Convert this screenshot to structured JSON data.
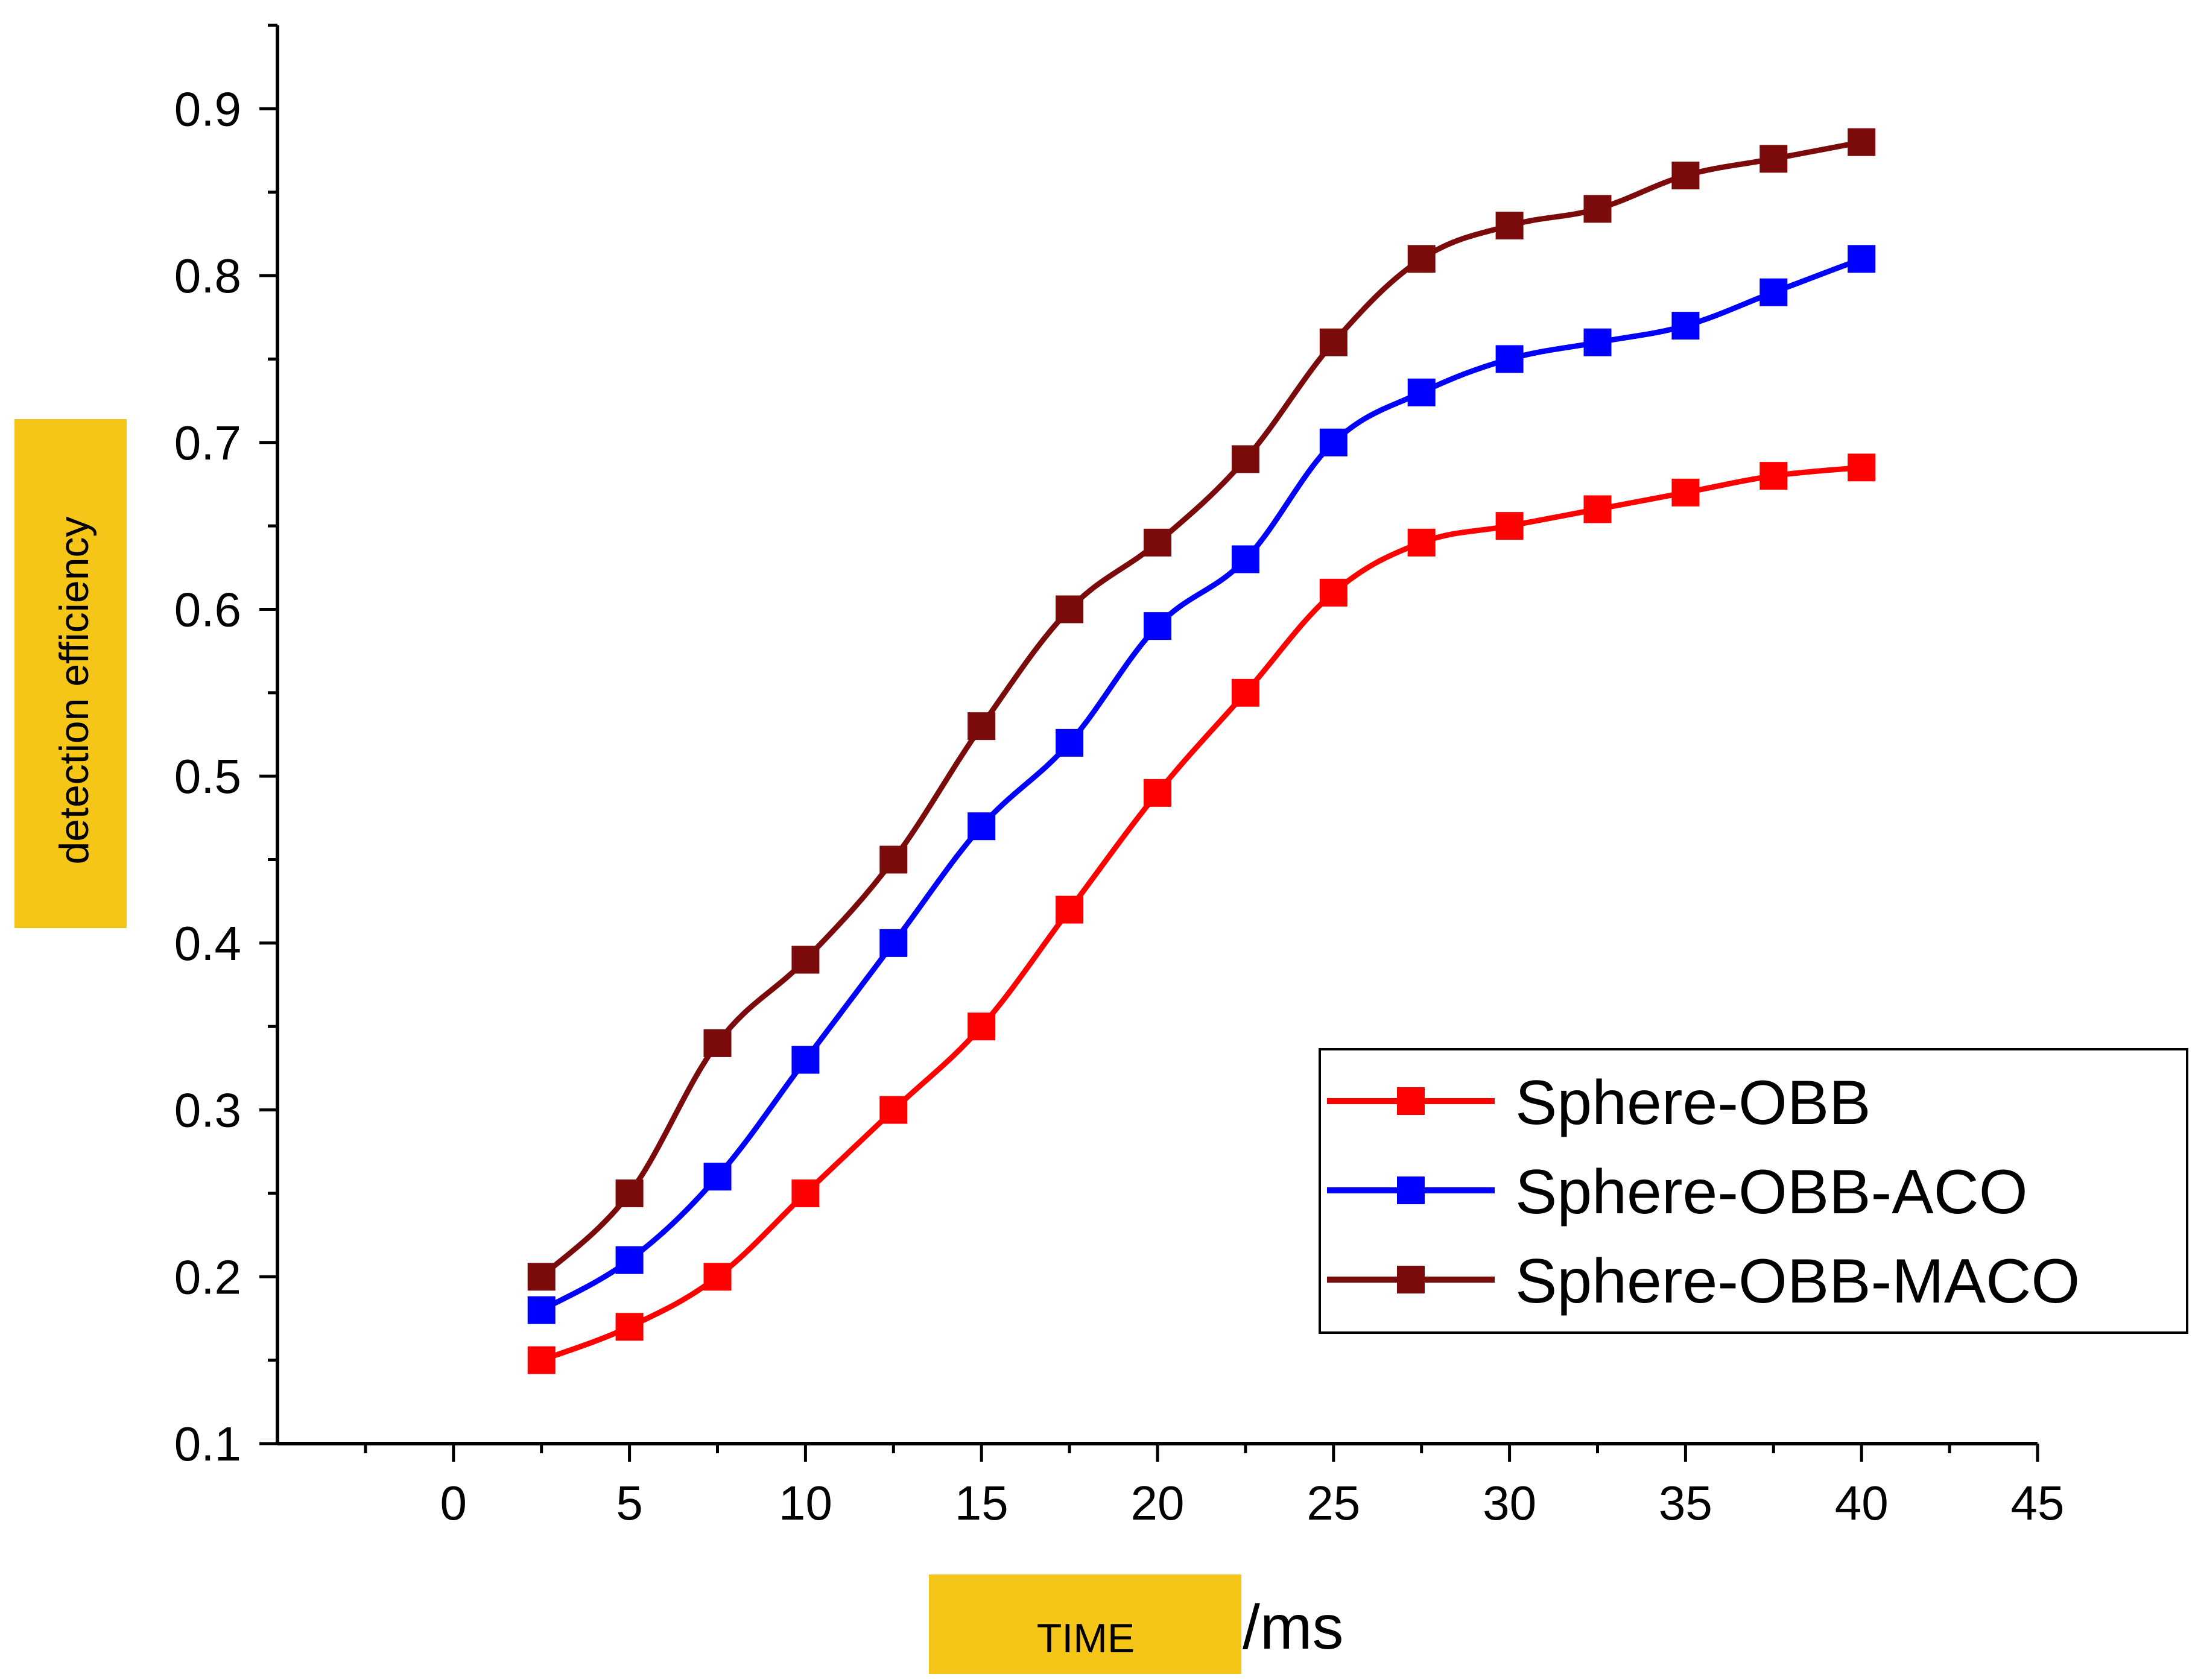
{
  "chart_data": {
    "type": "line",
    "title": "",
    "xlabel": "TIME",
    "xlabel_unit": "/ms",
    "ylabel": "detection efficiency",
    "xlim": [
      -5,
      45
    ],
    "ylim": [
      0.1,
      0.95
    ],
    "x_ticks": [
      0,
      5,
      10,
      15,
      20,
      25,
      30,
      35,
      40,
      45
    ],
    "x_tick_labels": [
      "0",
      "5",
      "10",
      "15",
      "20",
      "25",
      "30",
      "35",
      "40",
      "45"
    ],
    "y_ticks": [
      0.1,
      0.2,
      0.3,
      0.4,
      0.5,
      0.6,
      0.7,
      0.8,
      0.9
    ],
    "y_tick_labels": [
      "0.1",
      "0.2",
      "0.3",
      "0.4",
      "0.5",
      "0.6",
      "0.7",
      "0.8",
      "0.9"
    ],
    "grid": false,
    "legend_position": "bottom-right",
    "label_highlight_color": "#F5C518",
    "x": [
      2.5,
      5,
      7.5,
      10,
      12.5,
      15,
      17.5,
      20,
      22.5,
      25,
      27.5,
      30,
      32.5,
      35,
      37.5,
      40
    ],
    "series": [
      {
        "name": "Sphere-OBB",
        "color": "#FF0000",
        "marker": "square",
        "values": [
          0.15,
          0.17,
          0.2,
          0.25,
          0.3,
          0.35,
          0.42,
          0.49,
          0.55,
          0.61,
          0.64,
          0.65,
          0.66,
          0.67,
          0.68,
          0.685
        ]
      },
      {
        "name": "Sphere-OBB-ACO",
        "color": "#0000FF",
        "marker": "square",
        "values": [
          0.18,
          0.21,
          0.26,
          0.33,
          0.4,
          0.47,
          0.52,
          0.59,
          0.63,
          0.7,
          0.73,
          0.75,
          0.76,
          0.77,
          0.79,
          0.81
        ]
      },
      {
        "name": "Sphere-OBB-MACO",
        "color": "#7B0A0A",
        "marker": "square",
        "values": [
          0.2,
          0.25,
          0.34,
          0.39,
          0.45,
          0.53,
          0.6,
          0.64,
          0.69,
          0.76,
          0.81,
          0.83,
          0.84,
          0.86,
          0.87,
          0.88
        ]
      }
    ]
  }
}
